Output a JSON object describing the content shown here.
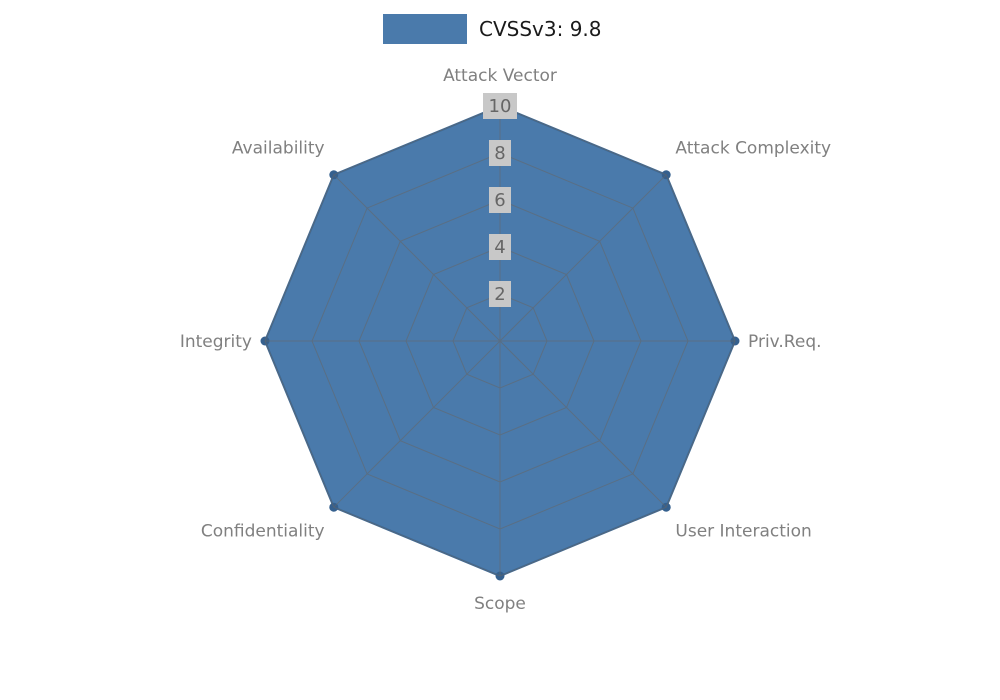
{
  "legend": {
    "label": "CVSSv3: 9.8"
  },
  "chart_data": {
    "type": "radar",
    "title": "CVSSv3: 9.8",
    "categories": [
      "Attack Vector",
      "Attack Complexity",
      "Priv.Req.",
      "User Interaction",
      "Scope",
      "Confidentiality",
      "Integrity",
      "Availability"
    ],
    "series": [
      {
        "name": "CVSSv3: 9.8",
        "values": [
          10,
          10,
          10,
          10,
          10,
          10,
          10,
          10
        ]
      }
    ],
    "ticks": [
      2,
      4,
      6,
      8,
      10
    ],
    "rmax": 10,
    "grid": true,
    "legend_position": "top-center",
    "colors": {
      "fill": "#4a7aab",
      "outline": "#3c6a99",
      "dot": "#35608e",
      "grid": "#666666",
      "axis_label": "#808080",
      "tick_text": "#666666",
      "tick_bg": "#c8c8c8"
    }
  }
}
